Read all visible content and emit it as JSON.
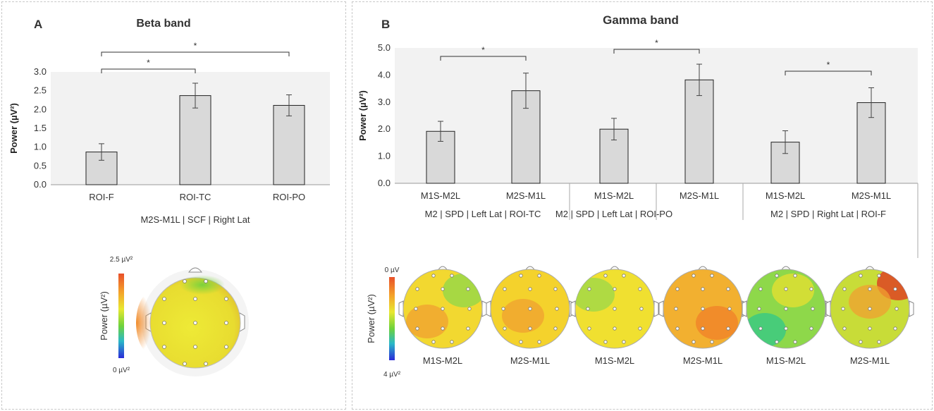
{
  "panels": {
    "a": {
      "letter": "A",
      "colorbar": {
        "max_label": "2.5 µV²",
        "min_label": "0 µV²",
        "axis_label": "Power (µV²)"
      },
      "topomap": {
        "description": "topographic power map, M2S-M1L, Right Lat",
        "value_hint": "mostly yellow, orange at left temporal, green at frontal right",
        "dominant": "#e8e830",
        "accents": [
          "#f08a28",
          "#7cd23c"
        ]
      }
    },
    "b": {
      "letter": "B",
      "colorbar": {
        "top_label": "0 µV",
        "bottom_label": "4  µV²",
        "axis_label": "Power (µV²)"
      },
      "topo_labels": [
        "M1S-M2L",
        "M2S-M1L",
        "M1S-M2L",
        "M2S-M1L",
        "M1S-M2L",
        "M2S-M1L"
      ],
      "topomaps": [
        {
          "base": "#f2d830",
          "accents": [
            "#f0a030",
            "#8ed84a"
          ]
        },
        {
          "base": "#f4d22c",
          "accents": [
            "#f0a030"
          ]
        },
        {
          "base": "#f0e030",
          "accents": [
            "#9ad84a"
          ]
        },
        {
          "base": "#f2b030",
          "accents": [
            "#f08028"
          ]
        },
        {
          "base": "#8ed84a",
          "accents": [
            "#e8e030",
            "#30c88a"
          ]
        },
        {
          "base": "#c8dc38",
          "accents": [
            "#e03020",
            "#f0a030"
          ]
        }
      ]
    }
  },
  "chart_data": [
    {
      "type": "bar",
      "title": "Beta band",
      "ylabel": "Power (µV²)",
      "xlabel": "M2S-M1L | SCF | Right Lat",
      "categories": [
        "ROI-F",
        "ROI-TC",
        "ROI-PO"
      ],
      "values": [
        0.87,
        2.37,
        2.11
      ],
      "errors": [
        0.22,
        0.33,
        0.28
      ],
      "ylim": [
        0,
        3.0
      ],
      "yticks": [
        "0.0",
        "0.5",
        "1.0",
        "1.5",
        "2.0",
        "2.5",
        "3.0"
      ],
      "ytick_values": [
        0,
        0.5,
        1.0,
        1.5,
        2.0,
        2.5,
        3.0
      ],
      "significance": [
        {
          "from": 0,
          "to": 1,
          "label": "*"
        },
        {
          "from": 0,
          "to": 2,
          "label": "*"
        }
      ],
      "bar_color": "#d9d9d9",
      "plot_bg": "#f2f2f2"
    },
    {
      "type": "bar",
      "title": "Gamma band",
      "ylabel": "Power (µV²)",
      "groups": [
        "M2 | SPD | Left Lat | ROI-TC",
        "M2 | SPD | Left Lat | ROI-PO",
        "M2 | SPD | Right Lat | ROI-F"
      ],
      "categories": [
        "M1S-M2L",
        "M2S-M1L",
        "M1S-M2L",
        "M2S-M1L",
        "M1S-M2L",
        "M2S-M1L"
      ],
      "values": [
        1.92,
        3.42,
        2.0,
        3.82,
        1.52,
        2.98
      ],
      "errors": [
        0.37,
        0.65,
        0.4,
        0.58,
        0.42,
        0.55
      ],
      "ylim": [
        0,
        5.0
      ],
      "yticks": [
        "0.0",
        "1.0",
        "2.0",
        "3.0",
        "4.0",
        "5.0"
      ],
      "ytick_values": [
        0,
        1.0,
        2.0,
        3.0,
        4.0,
        5.0
      ],
      "significance": [
        {
          "from": 0,
          "to": 1,
          "label": "*"
        },
        {
          "from": 2,
          "to": 3,
          "label": "*"
        },
        {
          "from": 4,
          "to": 5,
          "label": "*"
        }
      ],
      "bar_color": "#d9d9d9",
      "plot_bg": "#f2f2f2"
    }
  ]
}
